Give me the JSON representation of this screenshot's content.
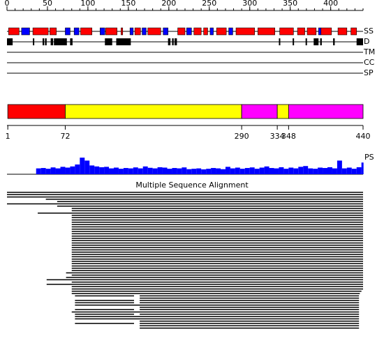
{
  "ruler": {
    "xlim": [
      0,
      440
    ],
    "ticks": [
      0,
      50,
      100,
      150,
      200,
      250,
      300,
      350,
      400
    ],
    "minor_ticks": [
      0,
      10,
      20,
      30,
      40,
      50,
      60,
      70,
      80,
      90,
      100,
      110,
      120,
      130,
      140,
      150,
      160,
      170,
      180,
      190,
      200,
      210,
      220,
      230,
      240,
      250,
      260,
      270,
      280,
      290,
      300,
      310,
      320,
      330,
      340,
      350,
      360,
      370,
      380,
      390,
      400,
      410,
      420,
      430,
      440
    ]
  },
  "tracks": {
    "ss": {
      "label": "SS",
      "helix_color": "#ff0000",
      "strand_color": "#0000ff",
      "helices": [
        [
          2,
          15
        ],
        [
          32,
          51
        ],
        [
          53,
          61
        ],
        [
          91,
          105
        ],
        [
          122,
          136
        ],
        [
          141,
          143
        ],
        [
          158,
          165
        ],
        [
          174,
          190
        ],
        [
          211,
          220
        ],
        [
          231,
          240
        ],
        [
          243,
          248
        ],
        [
          259,
          271
        ],
        [
          283,
          306
        ],
        [
          310,
          331
        ],
        [
          337,
          354
        ],
        [
          359,
          368
        ],
        [
          371,
          382
        ],
        [
          388,
          401
        ],
        [
          409,
          420
        ],
        [
          425,
          432
        ]
      ],
      "strands": [
        [
          18,
          28
        ],
        [
          72,
          78
        ],
        [
          83,
          89
        ],
        [
          115,
          121
        ],
        [
          152,
          156
        ],
        [
          167,
          172
        ],
        [
          193,
          199
        ],
        [
          222,
          228
        ],
        [
          251,
          255
        ],
        [
          274,
          279
        ],
        [
          385,
          388
        ]
      ]
    },
    "disorder": {
      "label": "D",
      "color": "#000000",
      "segments": [
        [
          0,
          7
        ],
        [
          32,
          33
        ],
        [
          44,
          46
        ],
        [
          47,
          49
        ],
        [
          54,
          57
        ],
        [
          58,
          74
        ],
        [
          78,
          81
        ],
        [
          121,
          130
        ],
        [
          135,
          153
        ],
        [
          199,
          202
        ],
        [
          204,
          206
        ],
        [
          207,
          210
        ],
        [
          336,
          337
        ],
        [
          353,
          354
        ],
        [
          369,
          370
        ],
        [
          379,
          385
        ],
        [
          387,
          389
        ],
        [
          403,
          405
        ],
        [
          432,
          440
        ]
      ]
    },
    "tm": {
      "label": "TM"
    },
    "cc": {
      "label": "CC"
    },
    "sp": {
      "label": "SP"
    }
  },
  "domains": {
    "boundaries": [
      1,
      72,
      290,
      334,
      348,
      440
    ],
    "colors": [
      "#ff0000",
      "#ffff00",
      "#ff00ff",
      "#ffff00",
      "#ff00ff"
    ]
  },
  "ps": {
    "label": "PS",
    "ylim": [
      0,
      100
    ],
    "color": "#0000ff",
    "positions": [
      36,
      42,
      48,
      54,
      60,
      66,
      72,
      78,
      84,
      90,
      96,
      102,
      108,
      114,
      120,
      126,
      132,
      138,
      144,
      150,
      156,
      162,
      168,
      174,
      180,
      186,
      192,
      198,
      204,
      210,
      216,
      222,
      228,
      234,
      240,
      246,
      252,
      258,
      264,
      270,
      276,
      282,
      288,
      294,
      300,
      306,
      312,
      318,
      324,
      330,
      336,
      342,
      348,
      354,
      360,
      366,
      372,
      378,
      384,
      390,
      396,
      402,
      408,
      414,
      420,
      426,
      432,
      438
    ],
    "values": [
      30,
      32,
      28,
      35,
      30,
      38,
      34,
      40,
      50,
      85,
      70,
      45,
      40,
      36,
      38,
      30,
      34,
      28,
      32,
      30,
      35,
      30,
      40,
      33,
      30,
      36,
      34,
      28,
      32,
      30,
      35,
      26,
      28,
      30,
      25,
      28,
      32,
      30,
      26,
      38,
      30,
      34,
      28,
      32,
      35,
      28,
      34,
      40,
      32,
      30,
      36,
      28,
      34,
      30,
      38,
      42,
      30,
      28,
      34,
      32,
      36,
      30,
      70,
      30,
      34,
      28,
      36,
      60
    ]
  },
  "msa": {
    "title": "Multiple Sequence Alignment",
    "rows": [
      [
        [
          0,
          440
        ]
      ],
      [
        [
          0,
          440
        ]
      ],
      [
        [
          0,
          440
        ]
      ],
      [
        [
          48,
          440
        ]
      ],
      [
        [
          62,
          440
        ]
      ],
      [
        [
          0,
          440
        ]
      ],
      [
        [
          62,
          440
        ]
      ],
      [
        [
          80,
          440
        ]
      ],
      [
        [
          80,
          440
        ]
      ],
      [
        [
          38,
          440
        ]
      ],
      [
        [
          80,
          440
        ]
      ],
      [
        [
          80,
          440
        ]
      ],
      [
        [
          80,
          440
        ]
      ],
      [
        [
          80,
          440
        ]
      ],
      [
        [
          80,
          440
        ]
      ],
      [
        [
          80,
          440
        ]
      ],
      [
        [
          80,
          440
        ]
      ],
      [
        [
          80,
          440
        ]
      ],
      [
        [
          80,
          440
        ]
      ],
      [
        [
          80,
          440
        ]
      ],
      [
        [
          80,
          440
        ]
      ],
      [
        [
          80,
          440
        ]
      ],
      [
        [
          80,
          440
        ]
      ],
      [
        [
          80,
          440
        ]
      ],
      [
        [
          80,
          440
        ]
      ],
      [
        [
          80,
          440
        ]
      ],
      [
        [
          80,
          440
        ]
      ],
      [
        [
          80,
          440
        ]
      ],
      [
        [
          80,
          440
        ]
      ],
      [
        [
          80,
          440
        ]
      ],
      [
        [
          80,
          440
        ]
      ],
      [
        [
          80,
          440
        ]
      ],
      [
        [
          80,
          440
        ]
      ],
      [
        [
          80,
          440
        ]
      ],
      [
        [
          80,
          440
        ]
      ],
      [
        [
          73,
          440
        ]
      ],
      [
        [
          80,
          440
        ]
      ],
      [
        [
          73,
          440
        ]
      ],
      [
        [
          49,
          440
        ]
      ],
      [
        [
          80,
          440
        ]
      ],
      [
        [
          49,
          440
        ]
      ],
      [
        [
          80,
          440
        ]
      ],
      [
        [
          80,
          440
        ]
      ],
      [
        [
          80,
          438
        ]
      ],
      [
        [
          80,
          436
        ]
      ],
      [
        [
          84,
          157
        ],
        [
          164,
          435
        ]
      ],
      [
        [
          164,
          435
        ]
      ],
      [
        [
          84,
          157
        ],
        [
          164,
          435
        ]
      ],
      [
        [
          84,
          157
        ],
        [
          164,
          435
        ]
      ],
      [
        [
          84,
          435
        ]
      ],
      [
        [
          164,
          435
        ]
      ],
      [
        [
          84,
          157
        ],
        [
          164,
          435
        ]
      ],
      [
        [
          80,
          435
        ]
      ],
      [
        [
          84,
          157
        ],
        [
          164,
          435
        ]
      ],
      [
        [
          84,
          435
        ]
      ],
      [
        [
          84,
          435
        ]
      ],
      [
        [
          164,
          435
        ]
      ],
      [
        [
          84,
          157
        ],
        [
          164,
          435
        ]
      ],
      [
        [
          164,
          435
        ]
      ],
      [
        [
          164,
          435
        ]
      ]
    ]
  }
}
